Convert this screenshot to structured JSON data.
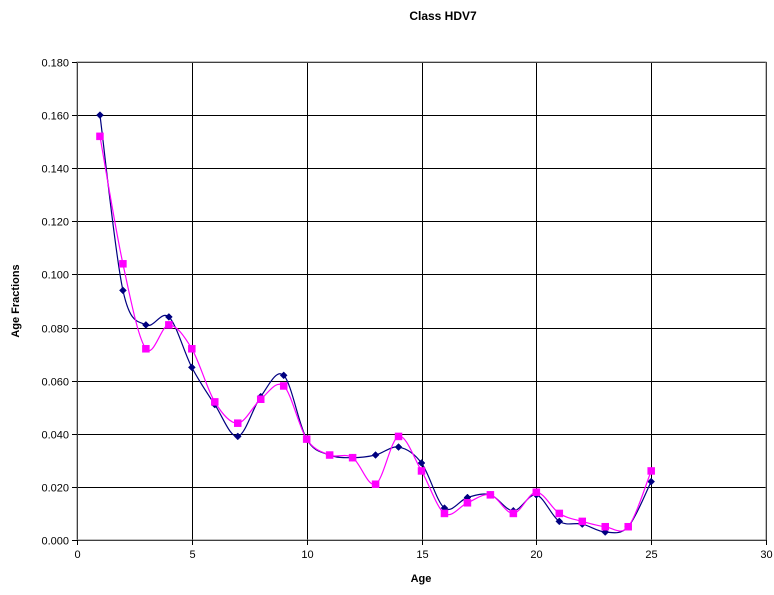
{
  "chart_data": {
    "type": "line",
    "title": "Class HDV7",
    "xlabel": "Age",
    "ylabel": "Age Fractions",
    "xlim": [
      0,
      30
    ],
    "ylim": [
      0,
      0.18
    ],
    "xticks": [
      0,
      5,
      10,
      15,
      20,
      25,
      30
    ],
    "yticks": [
      0.0,
      0.02,
      0.04,
      0.06,
      0.08,
      0.1,
      0.12,
      0.14,
      0.16,
      0.18
    ],
    "ytick_labels": [
      "0.000",
      "0.020",
      "0.040",
      "0.060",
      "0.080",
      "0.100",
      "0.120",
      "0.140",
      "0.160",
      "0.180"
    ],
    "grid": true,
    "smooth": true,
    "x": [
      1,
      2,
      3,
      4,
      5,
      6,
      7,
      8,
      9,
      10,
      11,
      12,
      13,
      14,
      15,
      16,
      17,
      18,
      19,
      20,
      21,
      22,
      23,
      24,
      25
    ],
    "series": [
      {
        "color": "#000080",
        "marker": "diamond",
        "values": [
          0.16,
          0.094,
          0.081,
          0.084,
          0.065,
          0.051,
          0.039,
          0.054,
          0.062,
          0.038,
          0.032,
          0.031,
          0.032,
          0.035,
          0.029,
          0.012,
          0.016,
          0.017,
          0.011,
          0.017,
          0.007,
          0.006,
          0.003,
          0.005,
          0.022
        ]
      },
      {
        "color": "#FF00FF",
        "marker": "square",
        "values": [
          0.152,
          0.104,
          0.072,
          0.081,
          0.072,
          0.052,
          0.044,
          0.053,
          0.058,
          0.038,
          0.032,
          0.031,
          0.021,
          0.039,
          0.026,
          0.01,
          0.014,
          0.017,
          0.01,
          0.018,
          0.01,
          0.007,
          0.005,
          0.005,
          0.026
        ]
      }
    ]
  }
}
